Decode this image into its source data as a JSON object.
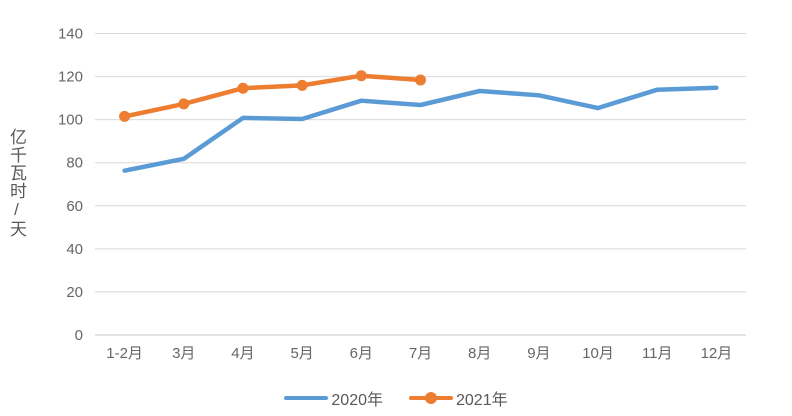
{
  "chart_data": {
    "type": "line",
    "categories": [
      "1-2月",
      "3月",
      "4月",
      "5月",
      "6月",
      "7月",
      "8月",
      "9月",
      "10月",
      "11月",
      "12月"
    ],
    "series": [
      {
        "name": "2020年",
        "color": "#5B9BD5",
        "marker": false,
        "values": [
          76.3,
          81.8,
          100.8,
          100.3,
          108.8,
          106.8,
          113.3,
          111.3,
          105.4,
          113.9,
          114.8
        ]
      },
      {
        "name": "2021年",
        "color": "#ED7D31",
        "marker": true,
        "values": [
          101.5,
          107.3,
          114.6,
          115.9,
          120.4,
          118.4
        ]
      }
    ],
    "title": "",
    "xlabel": "",
    "ylabel": "亿千瓦时/天",
    "ylim": [
      0,
      140
    ],
    "ytick_step": 20,
    "grid": true,
    "legend_position": "bottom",
    "colors": {
      "gridline": "#D9D9D9",
      "axis_line": "#C9C9C9",
      "tick_text": "#666666",
      "legend_text": "#595959"
    }
  }
}
